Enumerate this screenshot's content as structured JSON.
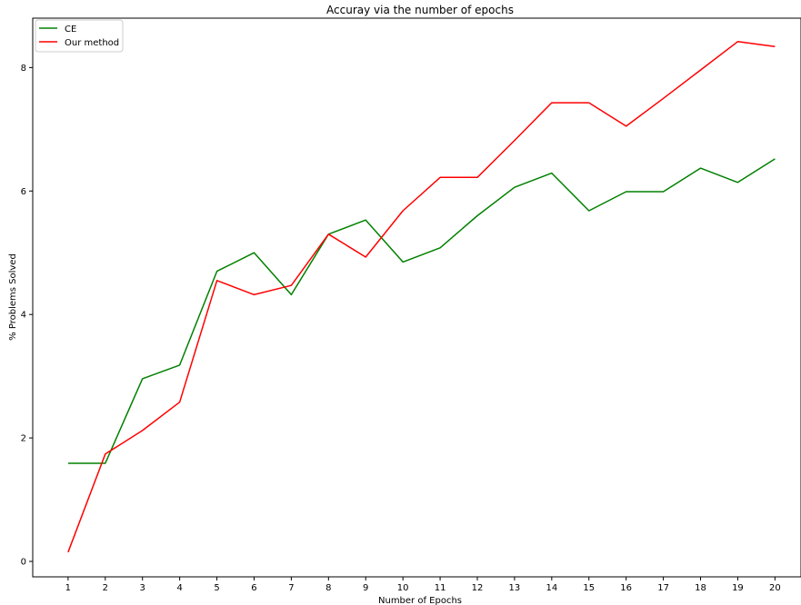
{
  "chart_data": {
    "type": "line",
    "title": "Accuray via the number of epochs",
    "xlabel": "Number of Epochs",
    "ylabel": "% Problems Solved",
    "x": [
      1,
      2,
      3,
      4,
      5,
      6,
      7,
      8,
      9,
      10,
      11,
      12,
      13,
      14,
      15,
      16,
      17,
      18,
      19,
      20
    ],
    "xlim": [
      0.05,
      20.7
    ],
    "ylim": [
      -0.25,
      8.8
    ],
    "yticks": [
      0,
      2,
      4,
      6,
      8
    ],
    "grid": false,
    "legend_position": "top-left",
    "series": [
      {
        "name": "CE",
        "color": "#008000",
        "values": [
          1.59,
          1.59,
          2.96,
          3.18,
          4.7,
          5.0,
          4.32,
          5.3,
          5.53,
          4.85,
          5.08,
          5.6,
          6.06,
          6.29,
          5.68,
          5.99,
          5.99,
          6.37,
          6.14,
          6.52
        ]
      },
      {
        "name": "Our method",
        "color": "#ff0000",
        "values": [
          0.15,
          1.74,
          2.12,
          2.58,
          4.55,
          4.32,
          4.47,
          5.3,
          4.93,
          5.68,
          6.22,
          6.22,
          6.82,
          7.43,
          7.43,
          7.05,
          7.5,
          7.96,
          8.42,
          8.34
        ]
      }
    ]
  }
}
